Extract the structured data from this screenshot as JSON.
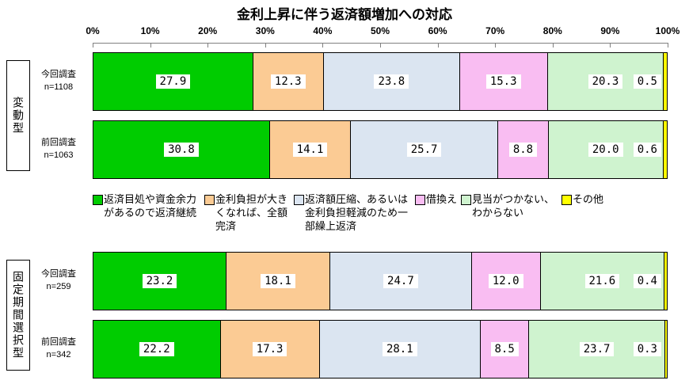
{
  "chart_data": {
    "type": "bar",
    "stacked": true,
    "orientation": "horizontal",
    "title": "金利上昇に伴う返済額増加への対応",
    "x_tick_labels": [
      "0%",
      "10%",
      "20%",
      "30%",
      "40%",
      "50%",
      "60%",
      "70%",
      "80%",
      "90%",
      "100%"
    ],
    "xlim": [
      0,
      100
    ],
    "tick_step": 10,
    "legend_position": "middle",
    "grid": false,
    "categories": [
      "返済目処や資金余力があるので返済継続",
      "金利負担が大きくなれば、全額完済",
      "返済額圧縮、あるいは金利負担軽減のため一部繰上返済",
      "借換え",
      "見当がつかない、わからない",
      "その他"
    ],
    "colors": [
      "#00CC00",
      "#FBCB94",
      "#DBE5F1",
      "#F9BDF2",
      "#CFF3CF",
      "#FFFF00"
    ],
    "groups": [
      {
        "group": "変動型",
        "series": [
          {
            "name": "今回調査",
            "n": "n=1108",
            "values": [
              27.9,
              12.3,
              23.8,
              15.3,
              20.3,
              0.5
            ]
          },
          {
            "name": "前回調査",
            "n": "n=1063",
            "values": [
              30.8,
              14.1,
              25.7,
              8.8,
              20.0,
              0.6
            ]
          }
        ]
      },
      {
        "group": "固定期間選択型",
        "series": [
          {
            "name": "今回調査",
            "n": "n=259",
            "values": [
              23.2,
              18.1,
              24.7,
              12.0,
              21.6,
              0.4
            ]
          },
          {
            "name": "前回調査",
            "n": "n=342",
            "values": [
              22.2,
              17.3,
              28.1,
              8.5,
              23.7,
              0.3
            ]
          }
        ]
      }
    ]
  }
}
